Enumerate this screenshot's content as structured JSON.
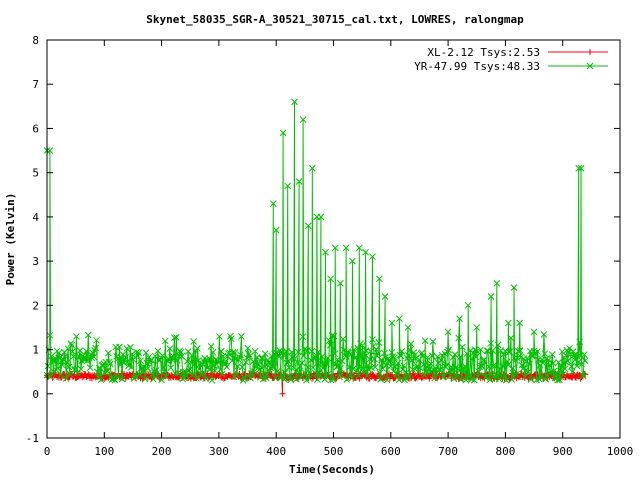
{
  "chart_data": {
    "type": "line",
    "title": "Skynet_58035_SGR-A_30521_30715_cal.txt, LOWRES, ralongmap",
    "xlabel": "Time(Seconds)",
    "ylabel": "Power (Kelvin)",
    "xlim": [
      0,
      1000
    ],
    "ylim": [
      -1,
      8
    ],
    "xticks": [
      "0",
      "100",
      "200",
      "300",
      "400",
      "500",
      "600",
      "700",
      "800",
      "900",
      "1000"
    ],
    "yticks": [
      "-1",
      "0",
      "1",
      "2",
      "3",
      "4",
      "5",
      "6",
      "7",
      "8"
    ],
    "grid": false,
    "legend_position": "top-right",
    "series": [
      {
        "name": "XL-2.12 Tsys:2.53",
        "color": "#ff0000",
        "marker": "plus",
        "baseline": 0.4,
        "noise": 0.06,
        "x_range": [
          0,
          940
        ],
        "outliers": [
          {
            "x": 411,
            "y": 0.0
          }
        ]
      },
      {
        "name": "YR-47.99 Tsys:48.33",
        "color": "#00c000",
        "marker": "x",
        "baseline": 0.65,
        "noise": 0.35,
        "x_range": [
          0,
          940
        ],
        "peaks": [
          {
            "x": 0,
            "y": 5.5
          },
          {
            "x": 5,
            "y": 5.5
          },
          {
            "x": 395,
            "y": 4.3
          },
          {
            "x": 400,
            "y": 3.7
          },
          {
            "x": 412,
            "y": 5.9
          },
          {
            "x": 420,
            "y": 4.7
          },
          {
            "x": 432,
            "y": 6.6
          },
          {
            "x": 440,
            "y": 4.8
          },
          {
            "x": 447,
            "y": 6.2
          },
          {
            "x": 456,
            "y": 3.8
          },
          {
            "x": 463,
            "y": 5.1
          },
          {
            "x": 471,
            "y": 4.0
          },
          {
            "x": 478,
            "y": 4.0
          },
          {
            "x": 486,
            "y": 3.2
          },
          {
            "x": 495,
            "y": 2.6
          },
          {
            "x": 503,
            "y": 3.3
          },
          {
            "x": 512,
            "y": 2.5
          },
          {
            "x": 522,
            "y": 3.3
          },
          {
            "x": 533,
            "y": 3.0
          },
          {
            "x": 545,
            "y": 3.3
          },
          {
            "x": 556,
            "y": 3.2
          },
          {
            "x": 568,
            "y": 3.1
          },
          {
            "x": 580,
            "y": 2.6
          },
          {
            "x": 590,
            "y": 2.2
          },
          {
            "x": 602,
            "y": 1.6
          },
          {
            "x": 615,
            "y": 1.7
          },
          {
            "x": 630,
            "y": 1.5
          },
          {
            "x": 660,
            "y": 1.2
          },
          {
            "x": 700,
            "y": 1.4
          },
          {
            "x": 720,
            "y": 1.7
          },
          {
            "x": 735,
            "y": 2.0
          },
          {
            "x": 750,
            "y": 1.5
          },
          {
            "x": 775,
            "y": 2.2
          },
          {
            "x": 785,
            "y": 2.5
          },
          {
            "x": 805,
            "y": 1.6
          },
          {
            "x": 815,
            "y": 2.4
          },
          {
            "x": 825,
            "y": 1.6
          },
          {
            "x": 850,
            "y": 1.4
          },
          {
            "x": 928,
            "y": 5.1
          },
          {
            "x": 932,
            "y": 5.1
          }
        ]
      }
    ]
  }
}
